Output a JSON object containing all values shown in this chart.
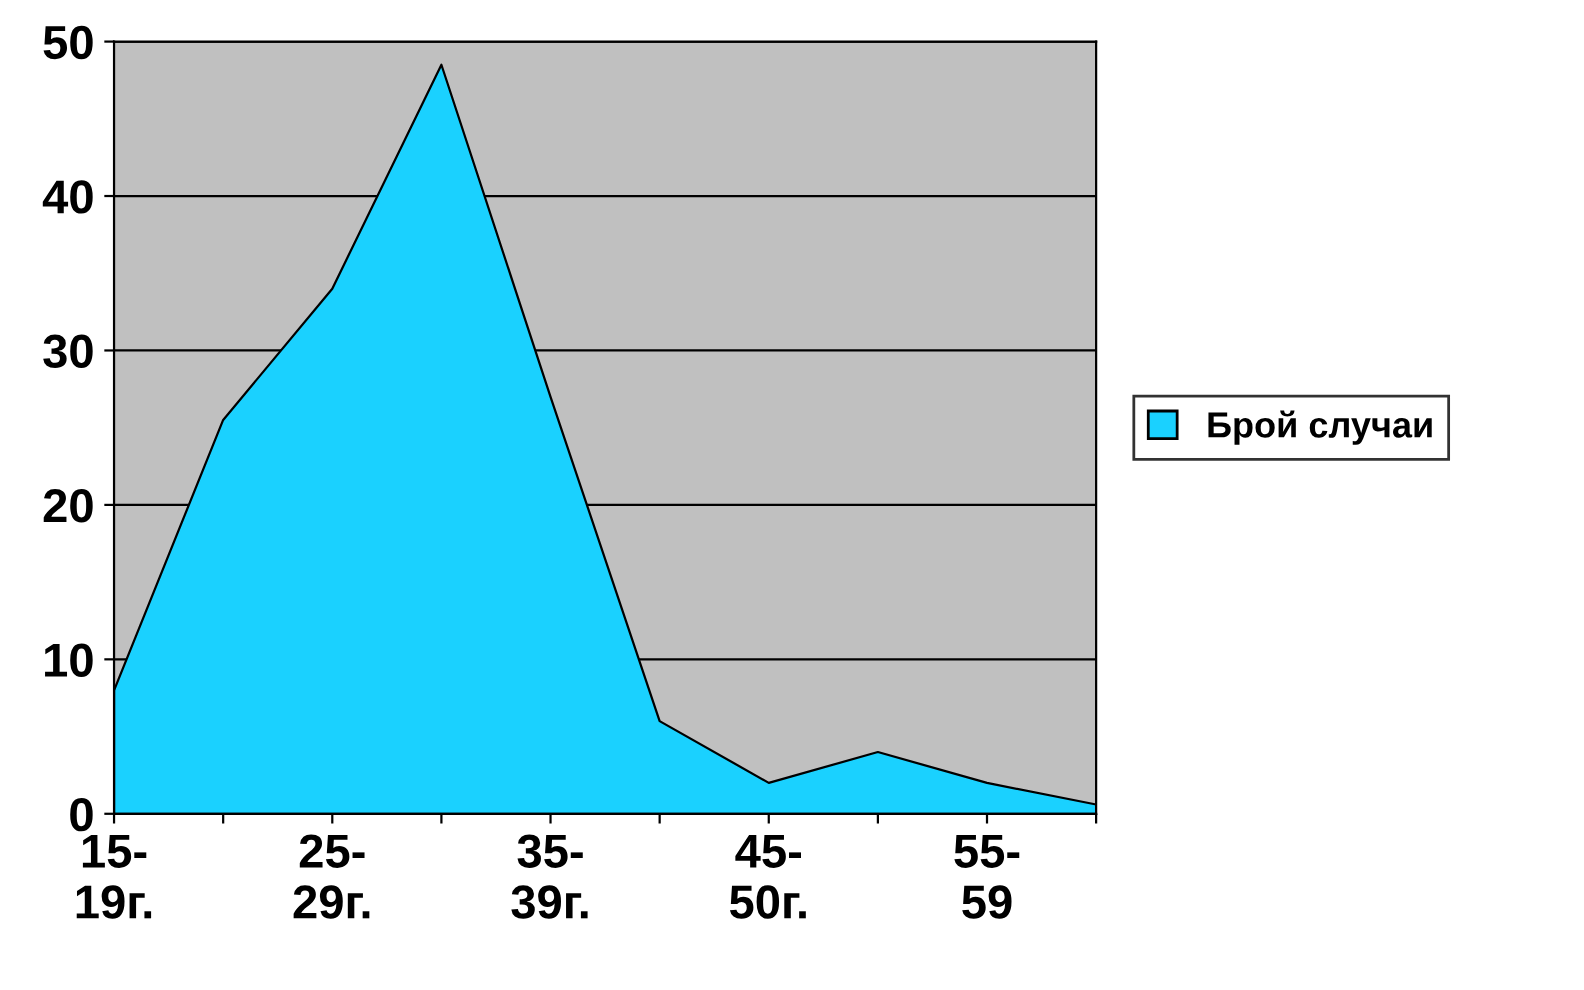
{
  "chart_data": {
    "type": "area",
    "categories": [
      "15-\n19г.",
      null,
      "25-\n29г.",
      null,
      "35-\n39г.",
      null,
      "45-\n50г.",
      null,
      "55-\n59",
      null
    ],
    "series": [
      {
        "name": "Брой случаи",
        "color": "#1ad1ff",
        "values": [
          8,
          25.5,
          34,
          48.5,
          27,
          6,
          2,
          4,
          2,
          0.6
        ]
      }
    ],
    "ylim": [
      0,
      50
    ],
    "yticks": [
      0,
      10,
      20,
      30,
      40,
      50
    ],
    "grid": "y",
    "legend": "right"
  }
}
